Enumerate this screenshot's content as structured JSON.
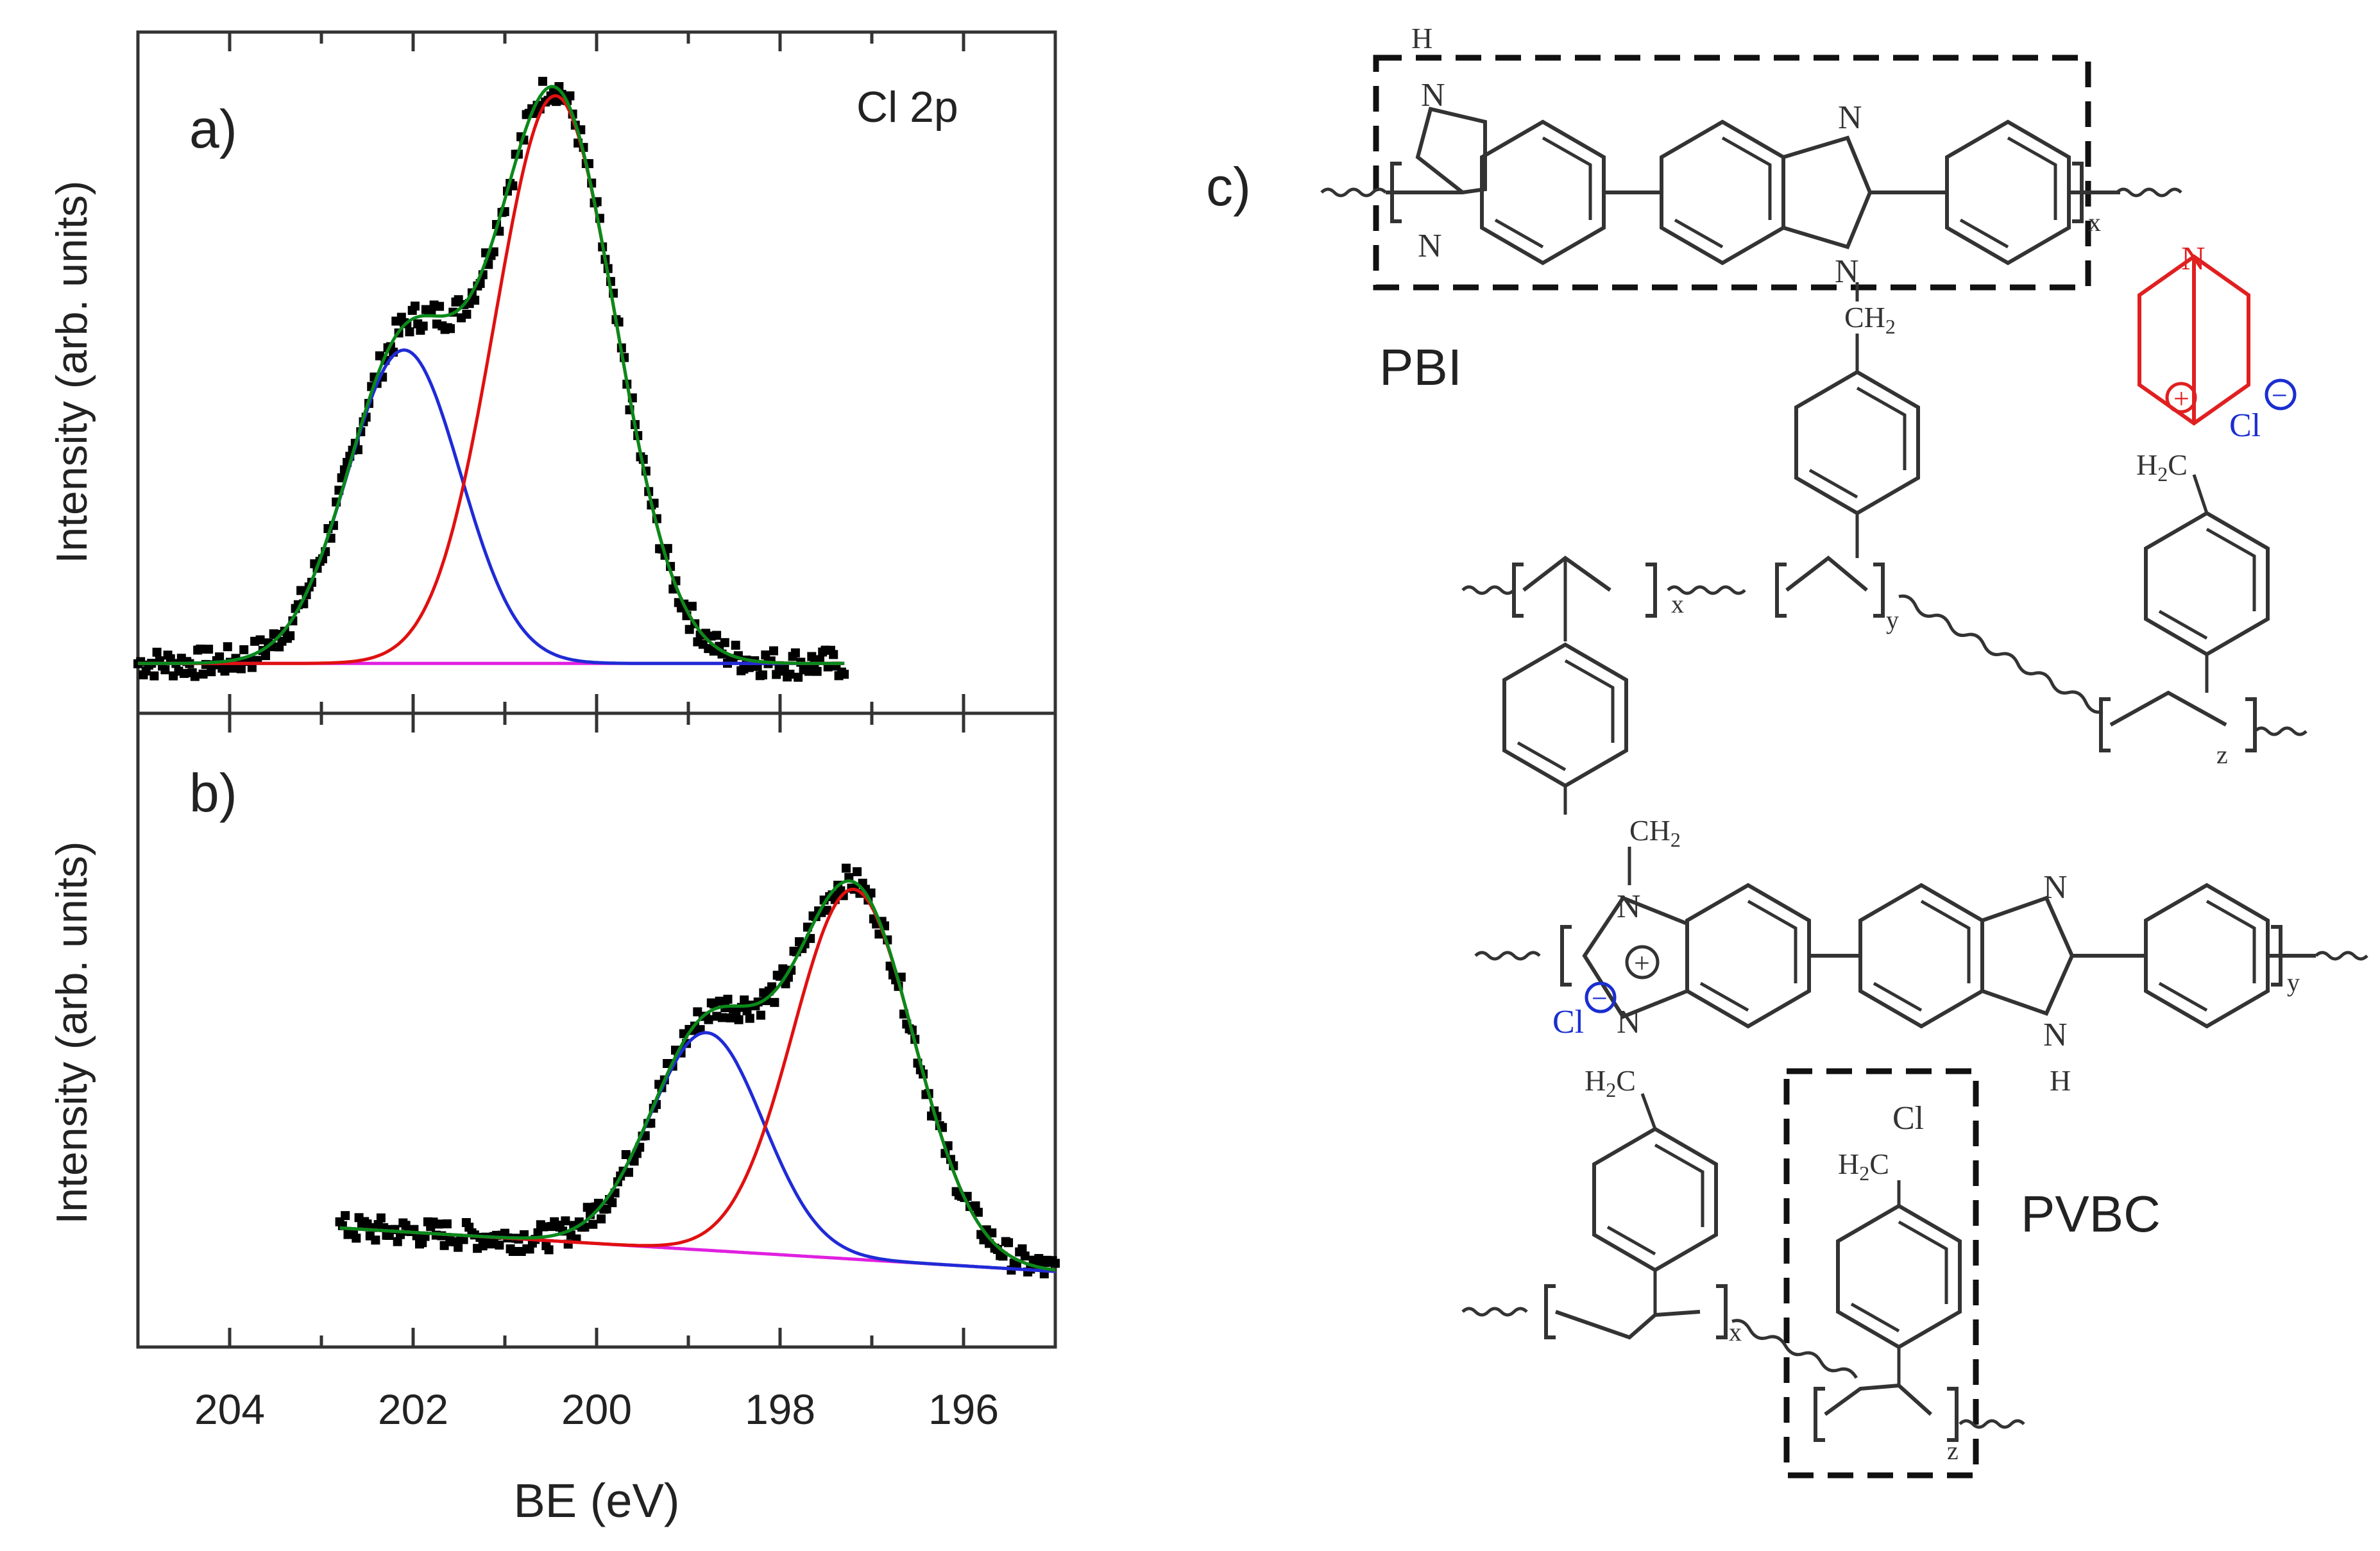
{
  "figure": {
    "panel_a_label": "a)",
    "panel_b_label": "b)",
    "panel_c_label": "c)",
    "panel_a_annotation": "Cl 2p",
    "pbi_label": "PBI",
    "pvbc_label": "PVBC"
  },
  "chart_data": [
    {
      "type": "scatter",
      "panel": "a)",
      "annotation": "Cl 2p",
      "xlabel": "BE (eV)",
      "ylabel": "Intensity (arb. units)",
      "xlim": [
        205,
        195
      ],
      "x_reversed": true,
      "y_ticks_shown": false,
      "xticks": [
        "204",
        "202",
        "200",
        "198",
        "196"
      ],
      "data_range_x": [
        205,
        197.3
      ],
      "background_level": 0.03,
      "peaks": [
        {
          "color": "#1f2bd6",
          "center": 202.1,
          "fwhm": 1.45,
          "height": 0.53
        },
        {
          "color": "#e01010",
          "center": 200.45,
          "fwhm": 1.55,
          "height": 0.96
        }
      ],
      "envelope_color": "#0a8a1a",
      "baseline_color": "#e020e0",
      "marker_color": "#000000"
    },
    {
      "type": "scatter",
      "panel": "b)",
      "xlabel": "BE (eV)",
      "ylabel": "Intensity (arb. units)",
      "xlim": [
        205,
        195
      ],
      "x_reversed": true,
      "y_ticks_shown": false,
      "xticks": [
        "204",
        "202",
        "200",
        "198",
        "196"
      ],
      "data_range_x": [
        202.8,
        195
      ],
      "background_level": [
        0.16,
        0.08
      ],
      "peaks": [
        {
          "color": "#1f2bd6",
          "center": 198.8,
          "fwhm": 1.45,
          "height": 0.4
        },
        {
          "color": "#e01010",
          "center": 197.2,
          "fwhm": 1.55,
          "height": 0.68
        }
      ],
      "envelope_color": "#0a8a1a",
      "baseline_color": "#e020e0",
      "marker_color": "#000000"
    }
  ],
  "structure": {
    "nh": "H",
    "n": "N",
    "ch2": "CH",
    "sub2": "2",
    "h2c": "H",
    "plus": "+",
    "cl": "Cl",
    "minus": "−",
    "sub_x": "x",
    "sub_y": "y",
    "sub_z": "z",
    "red": "#e02020",
    "blue": "#1a2ed0"
  }
}
